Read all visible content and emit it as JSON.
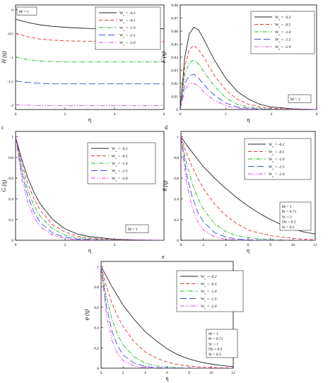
{
  "figure": {
    "background": "#ffffff"
  },
  "series_style": [
    {
      "name": "W_s = -0.2",
      "sub": "s",
      "value": "= -0.2",
      "color": "#222222",
      "dash": "solid"
    },
    {
      "name": "W_s = -0.5",
      "sub": "s",
      "value": "= -0.5",
      "color": "#e03030",
      "dash": "dashed"
    },
    {
      "name": "W_s = -1.0",
      "sub": "s",
      "value": "= -1.0",
      "color": "#20b020",
      "dash": "dashdot"
    },
    {
      "name": "W_s = -1.5",
      "sub": "s",
      "value": "= -1.5",
      "color": "#3050e0",
      "dash": "longdash"
    },
    {
      "name": "W_s = -2.0",
      "sub": "s",
      "value": "= -2.0",
      "color": "#e040e0",
      "dash": "dashdotdot"
    }
  ],
  "chart_data": [
    {
      "id": "H",
      "panel_label": "",
      "type": "line",
      "xlabel": "η",
      "ylabel": "H (η)",
      "xlim": [
        0,
        6
      ],
      "ylim": [
        -2.1,
        0.1
      ],
      "xticks": [
        0,
        2,
        4,
        6
      ],
      "yticks": [
        0,
        -0.5,
        -1,
        -1.5,
        -2
      ],
      "legend": "top-right",
      "info_box": {
        "position": "top-left",
        "lines": [
          "M = 1"
        ]
      },
      "x": [
        0,
        0.5,
        1,
        1.5,
        2,
        2.5,
        3,
        4,
        5,
        6
      ],
      "series": [
        {
          "name": "W_s = -0.2",
          "values": [
            -0.2,
            -0.27,
            -0.32,
            -0.35,
            -0.37,
            -0.385,
            -0.395,
            -0.4,
            -0.4,
            -0.4
          ]
        },
        {
          "name": "W_s = -0.5",
          "values": [
            -0.5,
            -0.57,
            -0.62,
            -0.64,
            -0.655,
            -0.66,
            -0.665,
            -0.67,
            -0.67,
            -0.67
          ]
        },
        {
          "name": "W_s = -1.0",
          "values": [
            -1.0,
            -1.05,
            -1.08,
            -1.09,
            -1.1,
            -1.1,
            -1.1,
            -1.1,
            -1.1,
            -1.1
          ]
        },
        {
          "name": "W_s = -1.5",
          "values": [
            -1.5,
            -1.53,
            -1.55,
            -1.56,
            -1.56,
            -1.56,
            -1.56,
            -1.56,
            -1.56,
            -1.56
          ]
        },
        {
          "name": "W_s = -2.0",
          "values": [
            -2.0,
            -2.01,
            -2.02,
            -2.02,
            -2.02,
            -2.02,
            -2.02,
            -2.02,
            -2.02,
            -2.02
          ]
        }
      ]
    },
    {
      "id": "F",
      "panel_label": "",
      "type": "line",
      "xlabel": "η",
      "ylabel": "F (η)",
      "xlim": [
        0,
        6
      ],
      "ylim": [
        0,
        0.08
      ],
      "xticks": [
        0,
        2,
        4,
        6
      ],
      "yticks": [
        0,
        0.01,
        0.02,
        0.03,
        0.04,
        0.05,
        0.06,
        0.07,
        0.08
      ],
      "legend": "top-right",
      "info_box": {
        "position": "right",
        "lines": [
          "M = 1"
        ]
      },
      "x": [
        0,
        0.2,
        0.4,
        0.6,
        0.8,
        1,
        1.2,
        1.5,
        2,
        2.5,
        3,
        3.5,
        4,
        5,
        6
      ],
      "series": [
        {
          "name": "W_s = -0.2",
          "values": [
            0,
            0.04,
            0.058,
            0.063,
            0.061,
            0.055,
            0.048,
            0.038,
            0.024,
            0.014,
            0.008,
            0.004,
            0.002,
            0.0005,
            0
          ]
        },
        {
          "name": "W_s = -0.5",
          "values": [
            0,
            0.033,
            0.046,
            0.049,
            0.046,
            0.041,
            0.035,
            0.026,
            0.015,
            0.008,
            0.004,
            0.002,
            0.001,
            0.0002,
            0
          ]
        },
        {
          "name": "W_s = -1.0",
          "values": [
            0,
            0.027,
            0.036,
            0.038,
            0.035,
            0.03,
            0.025,
            0.018,
            0.009,
            0.004,
            0.002,
            0.001,
            0.0004,
            0.0001,
            0
          ]
        },
        {
          "name": "W_s = -1.5",
          "values": [
            0,
            0.02,
            0.026,
            0.027,
            0.024,
            0.02,
            0.016,
            0.011,
            0.005,
            0.002,
            0.001,
            0.0003,
            0.0001,
            0,
            0
          ]
        },
        {
          "name": "W_s = -2.0",
          "values": [
            0,
            0.015,
            0.02,
            0.02,
            0.018,
            0.014,
            0.011,
            0.007,
            0.003,
            0.001,
            0.0004,
            0.0001,
            0,
            0,
            0
          ]
        }
      ]
    },
    {
      "id": "G",
      "panel_label": "c",
      "type": "line",
      "xlabel": "η",
      "ylabel": "G (η)",
      "xlim": [
        0,
        6
      ],
      "ylim": [
        0,
        1.05
      ],
      "xticks": [
        0,
        2,
        4
      ],
      "yticks": [
        0,
        0.2,
        0.4,
        0.6,
        0.8,
        1
      ],
      "legend": "top-right",
      "info_box": {
        "position": "bottom-right",
        "lines": [
          "M = 1"
        ]
      },
      "x": [
        0,
        0.25,
        0.5,
        0.75,
        1,
        1.5,
        2,
        2.5,
        3,
        4,
        5,
        6
      ],
      "series": [
        {
          "name": "W_s = -0.2",
          "values": [
            1,
            0.78,
            0.6,
            0.46,
            0.35,
            0.2,
            0.11,
            0.06,
            0.035,
            0.01,
            0.003,
            0
          ]
        },
        {
          "name": "W_s = -0.5",
          "values": [
            1,
            0.74,
            0.54,
            0.4,
            0.29,
            0.15,
            0.08,
            0.04,
            0.02,
            0.005,
            0.001,
            0
          ]
        },
        {
          "name": "W_s = -1.0",
          "values": [
            1,
            0.69,
            0.48,
            0.33,
            0.23,
            0.11,
            0.05,
            0.024,
            0.011,
            0.002,
            0,
            0
          ]
        },
        {
          "name": "W_s = -1.5",
          "values": [
            1,
            0.65,
            0.42,
            0.27,
            0.17,
            0.07,
            0.03,
            0.012,
            0.005,
            0.001,
            0,
            0
          ]
        },
        {
          "name": "W_s = -2.0",
          "values": [
            1,
            0.6,
            0.36,
            0.22,
            0.13,
            0.05,
            0.018,
            0.006,
            0.002,
            0,
            0,
            0
          ]
        }
      ]
    },
    {
      "id": "theta",
      "panel_label": "d",
      "type": "line",
      "xlabel": "η",
      "ylabel": "θ (η)",
      "xlim": [
        0,
        12
      ],
      "ylim": [
        0,
        1.05
      ],
      "xticks": [
        0,
        2,
        4,
        6,
        8,
        10,
        12
      ],
      "yticks": [
        0,
        0.2,
        0.4,
        0.6,
        0.8,
        1
      ],
      "legend": "top-right",
      "info_box": {
        "position": "right",
        "lines": [
          "M = 1",
          "Pr = 0.71",
          "Sc = 1",
          "Du = 0.2",
          "Sr = 0.3"
        ]
      },
      "x": [
        0,
        0.5,
        1,
        1.5,
        2,
        3,
        4,
        5,
        6,
        7,
        8,
        9,
        10,
        11,
        12
      ],
      "series": [
        {
          "name": "W_s = -0.2",
          "values": [
            1,
            0.92,
            0.85,
            0.78,
            0.71,
            0.6,
            0.5,
            0.41,
            0.33,
            0.26,
            0.2,
            0.15,
            0.11,
            0.08,
            0.06
          ]
        },
        {
          "name": "W_s = -0.5",
          "values": [
            1,
            0.84,
            0.71,
            0.6,
            0.5,
            0.35,
            0.24,
            0.16,
            0.1,
            0.07,
            0.045,
            0.03,
            0.02,
            0.01,
            0.005
          ]
        },
        {
          "name": "W_s = -1.0",
          "values": [
            1,
            0.74,
            0.55,
            0.41,
            0.3,
            0.16,
            0.085,
            0.045,
            0.024,
            0.013,
            0.007,
            0.004,
            0.002,
            0.001,
            0
          ]
        },
        {
          "name": "W_s = -1.5",
          "values": [
            1,
            0.64,
            0.42,
            0.27,
            0.18,
            0.075,
            0.03,
            0.012,
            0.005,
            0.002,
            0.001,
            0,
            0,
            0,
            0
          ]
        },
        {
          "name": "W_s = -2.0",
          "values": [
            1,
            0.56,
            0.32,
            0.18,
            0.1,
            0.032,
            0.01,
            0.003,
            0.001,
            0,
            0,
            0,
            0,
            0,
            0
          ]
        }
      ]
    },
    {
      "id": "phi",
      "panel_label": "e",
      "type": "line",
      "xlabel": "η",
      "ylabel": "φ (η)",
      "xlim": [
        0,
        12
      ],
      "ylim": [
        0,
        1.05
      ],
      "xticks": [
        0,
        2,
        4,
        6,
        8,
        10,
        12
      ],
      "yticks": [
        0,
        0.2,
        0.4,
        0.6,
        0.8,
        1
      ],
      "legend": "top-right",
      "info_box": {
        "position": "right",
        "lines": [
          "M = 1",
          "Pr = 0.71",
          "Sc = 1",
          "Du = 0.2",
          "Sr = 0.3"
        ]
      },
      "x": [
        0,
        0.5,
        1,
        1.5,
        2,
        3,
        4,
        5,
        6,
        7,
        8,
        9,
        10,
        11,
        12
      ],
      "series": [
        {
          "name": "W_s = -0.2",
          "values": [
            1,
            0.9,
            0.8,
            0.71,
            0.62,
            0.48,
            0.36,
            0.27,
            0.19,
            0.13,
            0.09,
            0.06,
            0.04,
            0.025,
            0.015
          ]
        },
        {
          "name": "W_s = -0.5",
          "values": [
            1,
            0.8,
            0.64,
            0.51,
            0.41,
            0.26,
            0.16,
            0.1,
            0.06,
            0.035,
            0.02,
            0.012,
            0.007,
            0.004,
            0.002
          ]
        },
        {
          "name": "W_s = -1.0",
          "values": [
            1,
            0.69,
            0.48,
            0.33,
            0.23,
            0.11,
            0.05,
            0.023,
            0.01,
            0.005,
            0.002,
            0.001,
            0,
            0,
            0
          ]
        },
        {
          "name": "W_s = -1.5",
          "values": [
            1,
            0.6,
            0.36,
            0.22,
            0.13,
            0.05,
            0.018,
            0.006,
            0.002,
            0.001,
            0,
            0,
            0,
            0,
            0
          ]
        },
        {
          "name": "W_s = -2.0",
          "values": [
            1,
            0.52,
            0.27,
            0.14,
            0.075,
            0.02,
            0.005,
            0.001,
            0,
            0,
            0,
            0,
            0,
            0,
            0
          ]
        }
      ]
    }
  ]
}
